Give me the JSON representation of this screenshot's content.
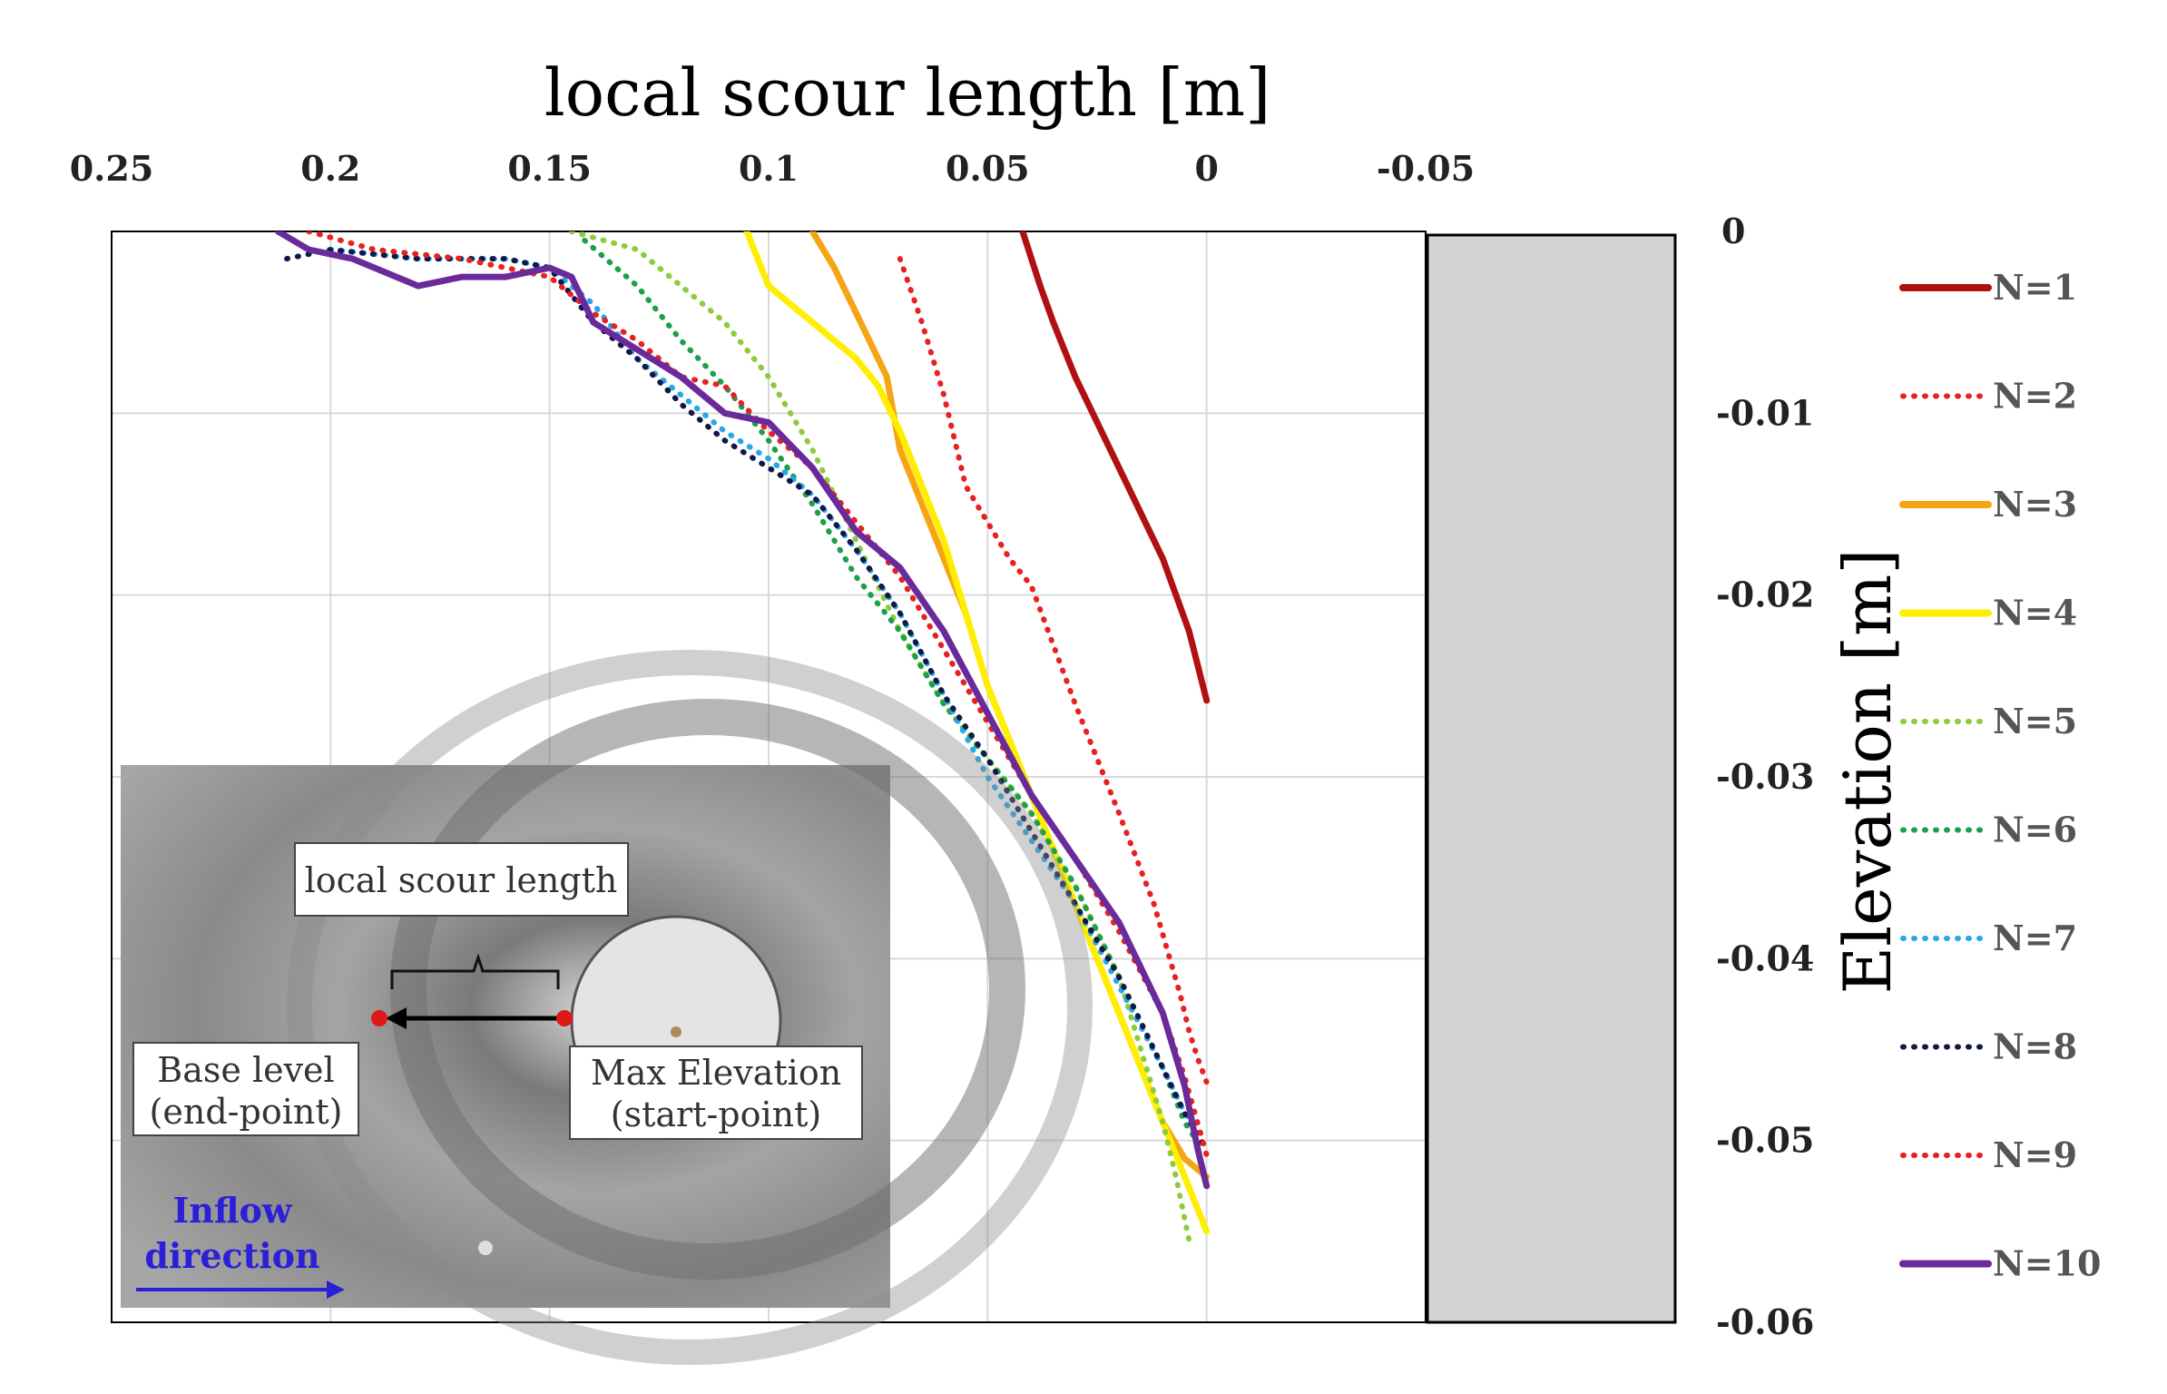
{
  "chart_data": {
    "type": "line",
    "xlabel": "local scour length [m]",
    "ylabel": "Elevation [m]",
    "xlim": [
      0.25,
      -0.05
    ],
    "ylim": [
      -0.06,
      0
    ],
    "x_reversed": true,
    "x_ticks": [
      "0.25",
      "0.2",
      "0.15",
      "0.1",
      "0.05",
      "0",
      "-0.05"
    ],
    "y_ticks": [
      "0",
      "-0.01",
      "-0.02",
      "-0.03",
      "-0.04",
      "-0.05",
      "-0.06"
    ],
    "grid": true,
    "legend_position": "right",
    "series": [
      {
        "name": "N=1",
        "color": "#b01010",
        "style": "solid",
        "x": [
          0.042,
          0.038,
          0.035,
          0.03,
          0.02,
          0.01,
          0.007,
          0.004,
          0.0
        ],
        "y": [
          0,
          -0.003,
          -0.005,
          -0.008,
          -0.013,
          -0.018,
          -0.02,
          -0.022,
          -0.0258
        ]
      },
      {
        "name": "N=2",
        "color": "#e82020",
        "style": "dotted",
        "x": [
          0.07,
          0.065,
          0.06,
          0.055,
          0.05,
          0.045,
          0.04,
          0.03,
          0.02,
          0.012,
          0.006,
          0.004,
          0.002,
          0.0
        ],
        "y": [
          -0.0015,
          -0.005,
          -0.009,
          -0.014,
          -0.016,
          -0.018,
          -0.0195,
          -0.026,
          -0.032,
          -0.037,
          -0.042,
          -0.044,
          -0.0455,
          -0.0468
        ]
      },
      {
        "name": "N=3",
        "color": "#f5a514",
        "style": "solid",
        "x": [
          0.09,
          0.085,
          0.08,
          0.073,
          0.07,
          0.065,
          0.06,
          0.055,
          0.05,
          0.045,
          0.04,
          0.035,
          0.03,
          0.025,
          0.02,
          0.015,
          0.01,
          0.005,
          0.0
        ],
        "y": [
          0,
          -0.002,
          -0.0045,
          -0.008,
          -0.012,
          -0.015,
          -0.018,
          -0.021,
          -0.025,
          -0.028,
          -0.031,
          -0.034,
          -0.037,
          -0.04,
          -0.043,
          -0.046,
          -0.049,
          -0.051,
          -0.052
        ]
      },
      {
        "name": "N=4",
        "color": "#ffee00",
        "style": "solid",
        "x": [
          0.105,
          0.1,
          0.09,
          0.08,
          0.075,
          0.07,
          0.065,
          0.06,
          0.055,
          0.05,
          0.045,
          0.04,
          0.035,
          0.03,
          0.025,
          0.02,
          0.015,
          0.01,
          0.005,
          0.0
        ],
        "y": [
          0,
          -0.003,
          -0.005,
          -0.007,
          -0.0085,
          -0.011,
          -0.014,
          -0.017,
          -0.021,
          -0.025,
          -0.028,
          -0.031,
          -0.034,
          -0.037,
          -0.04,
          -0.043,
          -0.046,
          -0.049,
          -0.052,
          -0.055
        ]
      },
      {
        "name": "N=5",
        "color": "#8ccc3c",
        "style": "dotted",
        "x": [
          0.145,
          0.13,
          0.12,
          0.11,
          0.1,
          0.09,
          0.08,
          0.07,
          0.06,
          0.05,
          0.04,
          0.03,
          0.02,
          0.015,
          0.01,
          0.007,
          0.004
        ],
        "y": [
          0,
          -0.001,
          -0.003,
          -0.005,
          -0.008,
          -0.012,
          -0.017,
          -0.022,
          -0.026,
          -0.029,
          -0.032,
          -0.036,
          -0.041,
          -0.045,
          -0.049,
          -0.052,
          -0.0555
        ]
      },
      {
        "name": "N=6",
        "color": "#1aa04a",
        "style": "dotted",
        "x": [
          0.142,
          0.13,
          0.12,
          0.11,
          0.1,
          0.09,
          0.08,
          0.07,
          0.06,
          0.05,
          0.04,
          0.03,
          0.02,
          0.01,
          0.005,
          0.001
        ],
        "y": [
          -0.0005,
          -0.003,
          -0.006,
          -0.0085,
          -0.0115,
          -0.015,
          -0.019,
          -0.022,
          -0.026,
          -0.029,
          -0.032,
          -0.036,
          -0.041,
          -0.046,
          -0.049,
          -0.0505
        ]
      },
      {
        "name": "N=7",
        "color": "#28a8e8",
        "style": "dotted",
        "x": [
          0.2,
          0.18,
          0.16,
          0.15,
          0.14,
          0.13,
          0.12,
          0.11,
          0.1,
          0.09,
          0.08,
          0.07,
          0.06,
          0.05,
          0.04,
          0.03,
          0.02,
          0.01,
          0.005,
          0.0
        ],
        "y": [
          -0.001,
          -0.0015,
          -0.0015,
          -0.002,
          -0.004,
          -0.007,
          -0.009,
          -0.011,
          -0.0125,
          -0.0145,
          -0.0175,
          -0.021,
          -0.0255,
          -0.03,
          -0.0335,
          -0.037,
          -0.0415,
          -0.046,
          -0.0485,
          -0.05
        ]
      },
      {
        "name": "N=8",
        "color": "#101848",
        "style": "dotted",
        "x": [
          0.21,
          0.2,
          0.18,
          0.16,
          0.15,
          0.14,
          0.13,
          0.12,
          0.11,
          0.1,
          0.09,
          0.08,
          0.07,
          0.06,
          0.05,
          0.04,
          0.03,
          0.02,
          0.01,
          0.005,
          0.0
        ],
        "y": [
          -0.0015,
          -0.001,
          -0.0015,
          -0.0015,
          -0.002,
          -0.005,
          -0.007,
          -0.0095,
          -0.0115,
          -0.013,
          -0.0145,
          -0.0175,
          -0.021,
          -0.0255,
          -0.029,
          -0.033,
          -0.037,
          -0.041,
          -0.046,
          -0.0485,
          -0.0505
        ]
      },
      {
        "name": "N=9",
        "color": "#e82020",
        "style": "dotted",
        "x": [
          0.205,
          0.19,
          0.17,
          0.15,
          0.14,
          0.13,
          0.12,
          0.11,
          0.1,
          0.09,
          0.08,
          0.07,
          0.06,
          0.05,
          0.04,
          0.03,
          0.02,
          0.01,
          0.005,
          0.0
        ],
        "y": [
          0,
          -0.001,
          -0.0015,
          -0.0025,
          -0.0045,
          -0.006,
          -0.008,
          -0.0085,
          -0.011,
          -0.013,
          -0.016,
          -0.019,
          -0.023,
          -0.027,
          -0.031,
          -0.0345,
          -0.0385,
          -0.043,
          -0.0465,
          -0.0508
        ]
      },
      {
        "name": "N=10",
        "color": "#6a2a9a",
        "style": "solid",
        "x": [
          0.212,
          0.205,
          0.195,
          0.18,
          0.17,
          0.16,
          0.15,
          0.145,
          0.14,
          0.13,
          0.12,
          0.11,
          0.1,
          0.09,
          0.08,
          0.07,
          0.06,
          0.05,
          0.04,
          0.03,
          0.02,
          0.01,
          0.005,
          0.002,
          0.0
        ],
        "y": [
          0,
          -0.001,
          -0.0015,
          -0.003,
          -0.0025,
          -0.0025,
          -0.002,
          -0.0025,
          -0.005,
          -0.0065,
          -0.008,
          -0.01,
          -0.0105,
          -0.013,
          -0.0165,
          -0.0185,
          -0.022,
          -0.0265,
          -0.031,
          -0.0345,
          -0.038,
          -0.043,
          -0.047,
          -0.0505,
          -0.0525
        ]
      }
    ]
  },
  "inset": {
    "callout_top": "local scour length",
    "left_line1": "Base level",
    "left_line2": "(end-point)",
    "right_line1": "Max Elevation",
    "right_line2": "(start-point)",
    "flow_line1": "Inflow",
    "flow_line2": "direction"
  },
  "colors": {
    "pier_fill": "#d4d4d4",
    "grid": "#d9d9d9",
    "inset_bg": "#9a9a9a",
    "flow_text": "#2b1fd8"
  }
}
